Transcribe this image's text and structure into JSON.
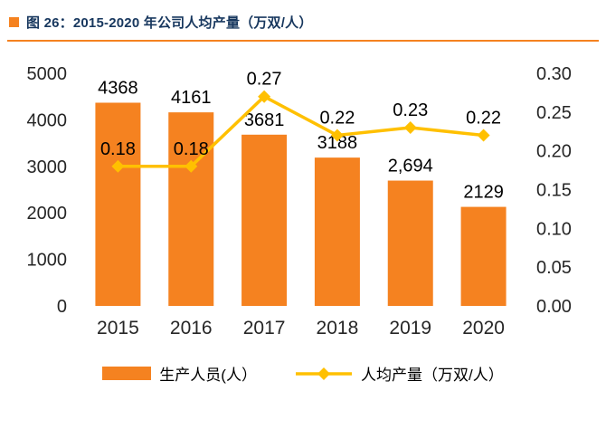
{
  "header": {
    "title": "图 26：2015-2020 年公司人均产量（万双/人）"
  },
  "chart_data": {
    "type": "bar",
    "subtype": "bar+line dual axis",
    "title": "图 26：2015-2020 年公司人均产量（万双/人）",
    "categories": [
      "2015",
      "2016",
      "2017",
      "2018",
      "2019",
      "2020"
    ],
    "series": [
      {
        "name": "生产人员(人）",
        "type": "bar",
        "axis": "left",
        "color": "#F58220",
        "values": [
          4368,
          4161,
          3681,
          3188,
          2694,
          2129
        ],
        "labels": [
          "4368",
          "4161",
          "3681",
          "3188",
          "2,694",
          "2129"
        ]
      },
      {
        "name": "人均产量（万双/人）",
        "type": "line",
        "axis": "right",
        "color": "#FFC000",
        "marker": "diamond",
        "values": [
          0.18,
          0.18,
          0.27,
          0.22,
          0.23,
          0.22
        ],
        "labels": [
          "0.18",
          "0.18",
          "0.27",
          "0.22",
          "0.23",
          "0.22"
        ]
      }
    ],
    "left_axis": {
      "min": 0,
      "max": 5000,
      "step": 1000,
      "ticks": [
        "0",
        "1000",
        "2000",
        "3000",
        "4000",
        "5000"
      ]
    },
    "right_axis": {
      "min": 0,
      "max": 0.3,
      "step": 0.05,
      "ticks": [
        "0.00",
        "0.05",
        "0.10",
        "0.15",
        "0.20",
        "0.25",
        "0.30"
      ]
    },
    "grid": false,
    "legend_position": "bottom"
  },
  "colors": {
    "accent_orange": "#F58220",
    "line_yellow": "#FFC000",
    "title_navy": "#17375E",
    "tick_text": "#262626"
  }
}
